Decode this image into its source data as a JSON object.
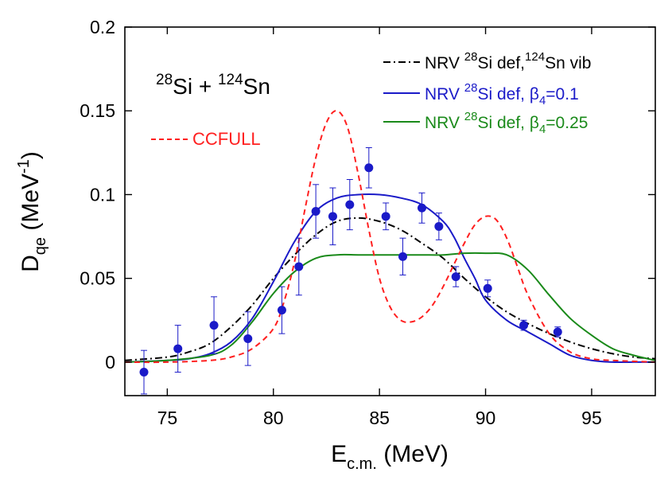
{
  "chart_data": {
    "type": "line",
    "xlabel_main": "E",
    "xlabel_sub": "c.m.",
    "xlabel_unit": " (MeV)",
    "ylabel_main": "D",
    "ylabel_sub": "qe",
    "ylabel_unit_pre": " (MeV",
    "ylabel_unit_sup": "-1",
    "ylabel_unit_post": ")",
    "xlim": [
      73,
      98
    ],
    "ylim": [
      -0.02,
      0.2
    ],
    "xticks": [
      75,
      80,
      85,
      90,
      95
    ],
    "xtick_labels": [
      "75",
      "80",
      "85",
      "90",
      "95"
    ],
    "yticks": [
      0,
      0.05,
      0.1,
      0.15,
      0.2
    ],
    "ytick_labels": [
      "0",
      "0.05",
      "0.1",
      "0.15",
      "0.2"
    ],
    "grid": false,
    "reaction": {
      "sup1": "28",
      "el1": "Si",
      "plus": " + ",
      "sup2": "124",
      "el2": "Sn"
    },
    "legend_ccfull": {
      "label": "CCFULL",
      "color": "#ff2020"
    },
    "legend_position": "top-right",
    "series": [
      {
        "key": "nrv_vib",
        "label_parts": [
          "NRV ",
          "28",
          "Si def,",
          "124",
          "Sn vib"
        ],
        "color": "#000000",
        "dash": "dashdot",
        "x": [
          73,
          75,
          76,
          77,
          78,
          79,
          80,
          81,
          82,
          83,
          84,
          85,
          86,
          87,
          88,
          89,
          90,
          91,
          92,
          93,
          94,
          95,
          96,
          97,
          98
        ],
        "y": [
          0.001,
          0.003,
          0.006,
          0.011,
          0.021,
          0.034,
          0.05,
          0.064,
          0.076,
          0.084,
          0.086,
          0.084,
          0.079,
          0.071,
          0.062,
          0.05,
          0.039,
          0.03,
          0.023,
          0.017,
          0.012,
          0.008,
          0.005,
          0.003,
          0.002
        ]
      },
      {
        "key": "nrv_b01",
        "label_parts": [
          "NRV ",
          "28",
          "Si def, ",
          "β",
          "4",
          "=0.1"
        ],
        "color": "#1a1ac8",
        "dash": "solid",
        "x": [
          73,
          75,
          76,
          77,
          78,
          79,
          80,
          81,
          82,
          83,
          84,
          85,
          86,
          87,
          88,
          88.5,
          89,
          89.5,
          90,
          91,
          92,
          93,
          94,
          95,
          96,
          97,
          98
        ],
        "y": [
          0.0,
          0.001,
          0.002,
          0.005,
          0.012,
          0.026,
          0.048,
          0.072,
          0.09,
          0.098,
          0.1,
          0.1,
          0.098,
          0.094,
          0.084,
          0.075,
          0.062,
          0.05,
          0.037,
          0.025,
          0.018,
          0.011,
          0.004,
          0.001,
          0.0,
          0.0,
          0.0
        ]
      },
      {
        "key": "nrv_b025",
        "label_parts": [
          "NRV ",
          "28",
          "Si def, ",
          "β",
          "4",
          "=0.25"
        ],
        "color": "#1a8a1a",
        "dash": "solid",
        "x": [
          73,
          75,
          77,
          78,
          79,
          80,
          81,
          82,
          83,
          84,
          85,
          86,
          87,
          88,
          89,
          90,
          91,
          92,
          93,
          94,
          95,
          96,
          97,
          98
        ],
        "y": [
          0.0,
          0.001,
          0.004,
          0.01,
          0.024,
          0.041,
          0.054,
          0.062,
          0.064,
          0.064,
          0.064,
          0.064,
          0.064,
          0.064,
          0.065,
          0.065,
          0.064,
          0.055,
          0.04,
          0.026,
          0.016,
          0.008,
          0.004,
          0.001
        ]
      },
      {
        "key": "ccfull",
        "label_parts": [
          "CCFULL"
        ],
        "color": "#ff2020",
        "dash": "dashed",
        "x": [
          73,
          75,
          77,
          78,
          79,
          80,
          80.5,
          81,
          81.5,
          82,
          82.5,
          83,
          83.5,
          84,
          84.5,
          85,
          85.5,
          86,
          86.5,
          87,
          87.5,
          88,
          88.5,
          89,
          89.5,
          90,
          90.5,
          91,
          91.5,
          92,
          93,
          94,
          95,
          96,
          98
        ],
        "y": [
          0.0,
          0.0,
          0.001,
          0.003,
          0.008,
          0.02,
          0.036,
          0.06,
          0.092,
          0.122,
          0.143,
          0.15,
          0.14,
          0.112,
          0.079,
          0.05,
          0.033,
          0.025,
          0.024,
          0.027,
          0.034,
          0.045,
          0.058,
          0.071,
          0.082,
          0.087,
          0.085,
          0.074,
          0.057,
          0.04,
          0.017,
          0.006,
          0.002,
          0.001,
          0.0
        ]
      }
    ],
    "points": {
      "color": "#1a1ac8",
      "x": [
        73.9,
        75.5,
        77.2,
        78.8,
        80.4,
        81.2,
        82.0,
        82.8,
        83.6,
        84.5,
        85.3,
        86.1,
        87.0,
        87.8,
        88.6,
        90.1,
        91.8,
        93.4
      ],
      "y": [
        -0.006,
        0.008,
        0.022,
        0.014,
        0.031,
        0.057,
        0.09,
        0.087,
        0.094,
        0.116,
        0.087,
        0.063,
        0.092,
        0.081,
        0.051,
        0.044,
        0.022,
        0.018
      ],
      "err": [
        0.013,
        0.014,
        0.017,
        0.016,
        0.014,
        0.017,
        0.016,
        0.017,
        0.015,
        0.012,
        0.008,
        0.011,
        0.009,
        0.008,
        0.006,
        0.005,
        0.003,
        0.003
      ]
    }
  }
}
